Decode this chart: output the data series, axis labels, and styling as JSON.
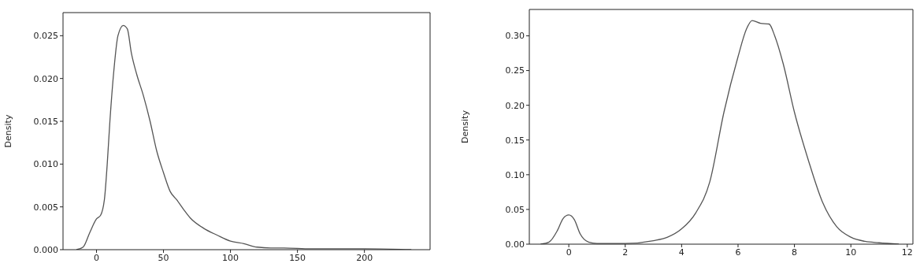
{
  "chart_data": [
    {
      "type": "line",
      "ylabel": "Density",
      "xlim": [
        -25,
        249
      ],
      "ylim": [
        0,
        0.0277
      ],
      "xticks": [
        0,
        50,
        100,
        150,
        200
      ],
      "yticks": [
        {
          "value": 0,
          "label": "0.000"
        },
        {
          "value": 0.005,
          "label": "0.005"
        },
        {
          "value": 0.01,
          "label": "0.010"
        },
        {
          "value": 0.015,
          "label": "0.015"
        },
        {
          "value": 0.02,
          "label": "0.020"
        },
        {
          "value": 0.025,
          "label": "0.025"
        }
      ],
      "marker": "none",
      "line_style": "solid",
      "x": [
        -15,
        -10,
        -5,
        0,
        3,
        6,
        8,
        10,
        13,
        16,
        20,
        23,
        26,
        30,
        35,
        40,
        45,
        50,
        55,
        60,
        65,
        70,
        80,
        90,
        100,
        110,
        120,
        130,
        140,
        160,
        180,
        200,
        235
      ],
      "series": [
        {
          "color": "#555555",
          "values": [
            0,
            0.0003,
            0.002,
            0.0036,
            0.004,
            0.006,
            0.01,
            0.015,
            0.021,
            0.025,
            0.0262,
            0.0258,
            0.023,
            0.0205,
            0.018,
            0.015,
            0.0115,
            0.009,
            0.0068,
            0.0058,
            0.0047,
            0.0037,
            0.0025,
            0.0017,
            0.001,
            0.0007,
            0.0003,
            0.0002,
            0.0002,
            0.0001,
            0.0001,
            0.0001,
            0
          ]
        }
      ]
    },
    {
      "type": "line",
      "ylabel": "Density",
      "xlim": [
        -1.4,
        12.2
      ],
      "ylim": [
        0,
        0.338
      ],
      "xticks": [
        0,
        2,
        4,
        6,
        8,
        10,
        12
      ],
      "yticks": [
        {
          "value": 0,
          "label": "0.00"
        },
        0.05,
        {
          "value": 0.1,
          "label": "0.10"
        },
        0.15,
        {
          "value": 0.2,
          "label": "0.20"
        },
        0.25,
        {
          "value": 0.3,
          "label": "0.30"
        }
      ],
      "marker": "none",
      "line_style": "solid",
      "x": [
        -1,
        -0.7,
        -0.4,
        -0.2,
        0,
        0.2,
        0.4,
        0.7,
        1,
        2,
        3,
        3.5,
        4,
        4.5,
        5,
        5.5,
        6,
        6.3,
        6.5,
        6.8,
        7.1,
        7.3,
        7.6,
        8,
        8.5,
        9,
        9.5,
        10,
        10.5,
        11,
        11.7
      ],
      "series": [
        {
          "color": "#555555",
          "values": [
            0,
            0.003,
            0.02,
            0.037,
            0.042,
            0.035,
            0.015,
            0.003,
            0.001,
            0.001,
            0.005,
            0.01,
            0.022,
            0.045,
            0.09,
            0.19,
            0.27,
            0.31,
            0.322,
            0.318,
            0.317,
            0.3,
            0.26,
            0.19,
            0.12,
            0.06,
            0.025,
            0.01,
            0.004,
            0.002,
            0
          ]
        }
      ]
    }
  ]
}
